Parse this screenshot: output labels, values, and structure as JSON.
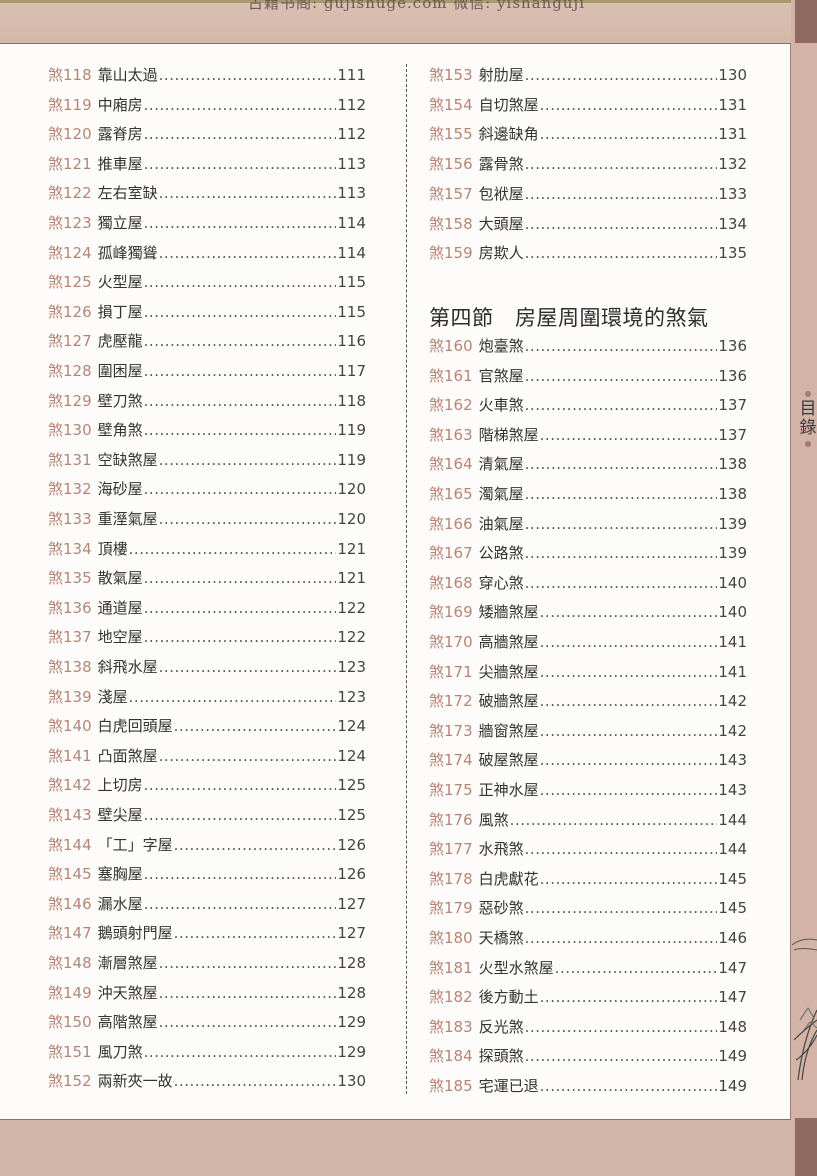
{
  "header": {
    "watermark": "古籍书阁: gujishuge.com 微信: yishanguji"
  },
  "side_tab": {
    "label": "目錄"
  },
  "colors": {
    "entry_number": "#b58678",
    "entry_text": "#333333",
    "background_band": "#d3b7aa"
  },
  "left_column": [
    {
      "num": "煞118",
      "name": "靠山太過",
      "page": "111"
    },
    {
      "num": "煞119",
      "name": "中廂房",
      "page": "112"
    },
    {
      "num": "煞120",
      "name": "露脊房",
      "page": "112"
    },
    {
      "num": "煞121",
      "name": "推車屋",
      "page": "113"
    },
    {
      "num": "煞122",
      "name": "左右室缺",
      "page": "113"
    },
    {
      "num": "煞123",
      "name": "獨立屋",
      "page": "114"
    },
    {
      "num": "煞124",
      "name": "孤峰獨聳",
      "page": "114"
    },
    {
      "num": "煞125",
      "name": "火型屋",
      "page": "115"
    },
    {
      "num": "煞126",
      "name": "損丁屋",
      "page": "115"
    },
    {
      "num": "煞127",
      "name": "虎壓龍",
      "page": "116"
    },
    {
      "num": "煞128",
      "name": "圍困屋",
      "page": "117"
    },
    {
      "num": "煞129",
      "name": "壁刀煞",
      "page": "118"
    },
    {
      "num": "煞130",
      "name": "壁角煞",
      "page": "119"
    },
    {
      "num": "煞131",
      "name": "空缺煞屋",
      "page": "119"
    },
    {
      "num": "煞132",
      "name": "海砂屋",
      "page": "120"
    },
    {
      "num": "煞133",
      "name": "重溼氣屋",
      "page": "120"
    },
    {
      "num": "煞134",
      "name": "頂樓",
      "page": "121"
    },
    {
      "num": "煞135",
      "name": "散氣屋",
      "page": "121"
    },
    {
      "num": "煞136",
      "name": "通道屋",
      "page": "122"
    },
    {
      "num": "煞137",
      "name": "地空屋",
      "page": "122"
    },
    {
      "num": "煞138",
      "name": "斜飛水屋",
      "page": "123"
    },
    {
      "num": "煞139",
      "name": "淺屋",
      "page": "123"
    },
    {
      "num": "煞140",
      "name": "白虎回頭屋",
      "page": "124"
    },
    {
      "num": "煞141",
      "name": "凸面煞屋",
      "page": "124"
    },
    {
      "num": "煞142",
      "name": "上切房",
      "page": "125"
    },
    {
      "num": "煞143",
      "name": "壁尖屋",
      "page": "125"
    },
    {
      "num": "煞144",
      "name": "「工」字屋",
      "page": "126"
    },
    {
      "num": "煞145",
      "name": "塞胸屋",
      "page": "126"
    },
    {
      "num": "煞146",
      "name": "漏水屋",
      "page": "127"
    },
    {
      "num": "煞147",
      "name": "鵝頭射門屋",
      "page": "127"
    },
    {
      "num": "煞148",
      "name": "漸層煞屋",
      "page": "128"
    },
    {
      "num": "煞149",
      "name": "沖天煞屋",
      "page": "128"
    },
    {
      "num": "煞150",
      "name": "高階煞屋",
      "page": "129"
    },
    {
      "num": "煞151",
      "name": "風刀煞",
      "page": "129"
    },
    {
      "num": "煞152",
      "name": "兩新夾一故",
      "page": "130"
    }
  ],
  "right_column_top": [
    {
      "num": "煞153",
      "name": "射肋屋",
      "page": "130"
    },
    {
      "num": "煞154",
      "name": "自切煞屋",
      "page": "131"
    },
    {
      "num": "煞155",
      "name": "斜邊缺角",
      "page": "131"
    },
    {
      "num": "煞156",
      "name": "露骨煞",
      "page": "132"
    },
    {
      "num": "煞157",
      "name": "包袱屋",
      "page": "133"
    },
    {
      "num": "煞158",
      "name": "大頭屋",
      "page": "134"
    },
    {
      "num": "煞159",
      "name": "房欺人",
      "page": "135"
    }
  ],
  "section_heading": "第四節　房屋周圍環境的煞氣",
  "right_column_bottom": [
    {
      "num": "煞160",
      "name": "炮臺煞",
      "page": "136"
    },
    {
      "num": "煞161",
      "name": "官煞屋",
      "page": "136"
    },
    {
      "num": "煞162",
      "name": "火車煞",
      "page": "137"
    },
    {
      "num": "煞163",
      "name": "階梯煞屋",
      "page": "137"
    },
    {
      "num": "煞164",
      "name": "清氣屋",
      "page": "138"
    },
    {
      "num": "煞165",
      "name": "濁氣屋",
      "page": "138"
    },
    {
      "num": "煞166",
      "name": "油氣屋",
      "page": "139"
    },
    {
      "num": "煞167",
      "name": "公路煞",
      "page": "139"
    },
    {
      "num": "煞168",
      "name": "穿心煞",
      "page": "140"
    },
    {
      "num": "煞169",
      "name": "矮牆煞屋",
      "page": "140"
    },
    {
      "num": "煞170",
      "name": "高牆煞屋",
      "page": "141"
    },
    {
      "num": "煞171",
      "name": "尖牆煞屋",
      "page": "141"
    },
    {
      "num": "煞172",
      "name": "破牆煞屋",
      "page": "142"
    },
    {
      "num": "煞173",
      "name": "牆窗煞屋",
      "page": "142"
    },
    {
      "num": "煞174",
      "name": "破屋煞屋",
      "page": "143"
    },
    {
      "num": "煞175",
      "name": "正神水屋",
      "page": "143"
    },
    {
      "num": "煞176",
      "name": "風煞",
      "page": "144"
    },
    {
      "num": "煞177",
      "name": "水飛煞",
      "page": "144"
    },
    {
      "num": "煞178",
      "name": "白虎獻花",
      "page": "145"
    },
    {
      "num": "煞179",
      "name": "惡砂煞",
      "page": "145"
    },
    {
      "num": "煞180",
      "name": "天橋煞",
      "page": "146"
    },
    {
      "num": "煞181",
      "name": "火型水煞屋",
      "page": "147"
    },
    {
      "num": "煞182",
      "name": "後方動土",
      "page": "147"
    },
    {
      "num": "煞183",
      "name": "反光煞",
      "page": "148"
    },
    {
      "num": "煞184",
      "name": "探頭煞",
      "page": "149"
    },
    {
      "num": "煞185",
      "name": "宅運已退",
      "page": "149"
    }
  ]
}
